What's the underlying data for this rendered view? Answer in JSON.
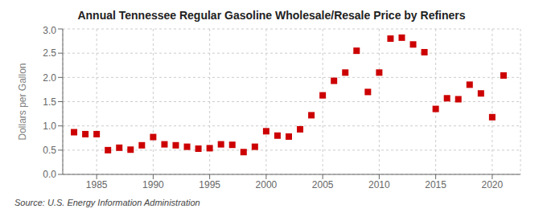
{
  "chart_data": {
    "type": "scatter",
    "title": "Annual Tennessee Regular Gasoline Wholesale/Resale Price by Refiners",
    "ylabel": "Dollars per Gallon",
    "annotation": "Source: U.S. Energy Information Administration",
    "x": [
      1983,
      1984,
      1985,
      1986,
      1987,
      1988,
      1989,
      1990,
      1991,
      1992,
      1993,
      1994,
      1995,
      1996,
      1997,
      1998,
      1999,
      2000,
      2001,
      2002,
      2003,
      2004,
      2005,
      2006,
      2007,
      2008,
      2009,
      2010,
      2011,
      2012,
      2013,
      2014,
      2015,
      2016,
      2017,
      2018,
      2019,
      2020,
      2021
    ],
    "values": [
      0.87,
      0.83,
      0.83,
      0.5,
      0.55,
      0.51,
      0.6,
      0.77,
      0.62,
      0.6,
      0.57,
      0.53,
      0.54,
      0.62,
      0.61,
      0.46,
      0.57,
      0.89,
      0.8,
      0.78,
      0.93,
      1.22,
      1.63,
      1.93,
      2.1,
      2.55,
      1.7,
      2.1,
      2.8,
      2.82,
      2.68,
      2.52,
      1.35,
      1.57,
      1.55,
      1.85,
      1.67,
      1.18,
      2.04
    ],
    "color": "#cc0000",
    "marker": "square",
    "xlim": [
      1982,
      2022.5
    ],
    "ylim": [
      0.0,
      3.0
    ],
    "xticks": [
      1985,
      1990,
      1995,
      2000,
      2005,
      2010,
      2015,
      2020
    ],
    "yticks": [
      {
        "value": 0.0,
        "label": "0.0"
      },
      0.5,
      {
        "value": 1.0,
        "label": "1.0"
      },
      1.5,
      {
        "value": 2.0,
        "label": "2.0"
      },
      2.5,
      {
        "value": 3.0,
        "label": "3.0"
      }
    ],
    "grid": true
  }
}
